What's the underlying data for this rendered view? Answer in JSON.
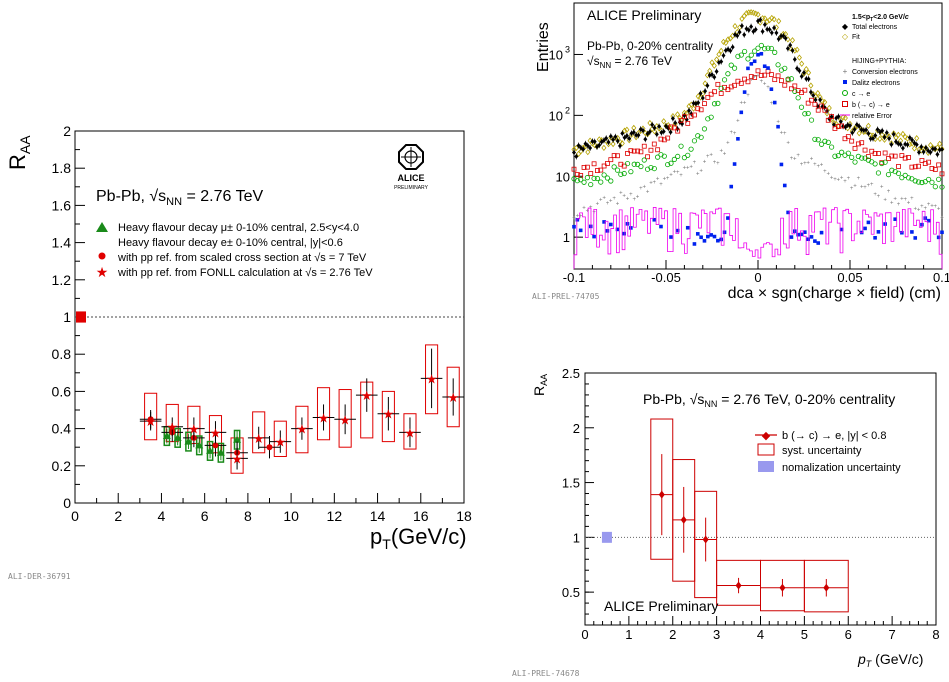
{
  "chart_data": [
    {
      "type": "scatter",
      "id": "raa-left",
      "ylabel": "R_AA",
      "ylabel_main": "R",
      "ylabel_sub": "AA",
      "xlabel_main": "p",
      "xlabel_sub": "T",
      "xlabel_unit": "(GeV/c)",
      "xlim": [
        0,
        18
      ],
      "ylim": [
        0,
        2
      ],
      "xticks": [
        "0",
        "2",
        "4",
        "6",
        "8",
        "10",
        "12",
        "14",
        "16",
        "18"
      ],
      "yticks": [
        "0",
        "0.2",
        "0.4",
        "0.6",
        "0.8",
        "1",
        "1.2",
        "1.4",
        "1.6",
        "1.8",
        "2"
      ],
      "system_label": "Pb-Pb, √s",
      "system_sub": "NN",
      "system_energy": " = 2.76 TeV",
      "logo_text": "ALICE",
      "logo_sub": "PRELIMINARY",
      "tag": "ALI-DER-36791",
      "legend": [
        "Heavy flavour decay μ± 0-10% central, 2.5<y<4.0",
        "Heavy flavour decay e± 0-10% central, |y|<0.6",
        "with pp ref. from scaled cross section at √s = 7 TeV",
        "with pp ref. from FONLL calculation at √s = 2.76 TeV"
      ],
      "norm_box": {
        "y": 1.0,
        "height": 0.06
      },
      "muon_series": {
        "name": "Heavy flavour decay μ± 0-10% central, 2.5<y<4.0",
        "x": [
          4.25,
          4.75,
          5.25,
          5.75,
          6.25,
          6.75,
          7.5
        ],
        "y": [
          0.36,
          0.35,
          0.33,
          0.31,
          0.28,
          0.27,
          0.34
        ],
        "err": [
          0.04,
          0.04,
          0.04,
          0.04,
          0.04,
          0.04,
          0.05
        ],
        "syst": [
          0.05,
          0.05,
          0.05,
          0.05,
          0.05,
          0.05,
          0.05
        ]
      },
      "electron_scaled": {
        "name": "with pp ref. from scaled cross section at √s = 7 TeV",
        "x": [
          3.5,
          4.5,
          5.5,
          6.5,
          7.5,
          9.0
        ],
        "y": [
          0.45,
          0.38,
          0.35,
          0.31,
          0.27,
          0.3
        ],
        "err": [
          0.05,
          0.05,
          0.05,
          0.06,
          0.06,
          0.06
        ]
      },
      "electron_fonll": {
        "name": "with pp ref. from FONLL calculation at √s = 2.76 TeV",
        "x": [
          3.5,
          4.5,
          5.5,
          6.5,
          7.5,
          8.5,
          9.5,
          10.5,
          11.5,
          12.5,
          13.5,
          14.5,
          15.5,
          16.5,
          17.5
        ],
        "y": [
          0.44,
          0.41,
          0.4,
          0.38,
          0.24,
          0.35,
          0.33,
          0.4,
          0.46,
          0.45,
          0.58,
          0.48,
          0.38,
          0.67,
          0.57
        ],
        "err": [
          0.05,
          0.05,
          0.06,
          0.06,
          0.06,
          0.06,
          0.06,
          0.06,
          0.07,
          0.08,
          0.09,
          0.09,
          0.08,
          0.16,
          0.1
        ],
        "syst_lo": [
          0.34,
          0.33,
          0.32,
          0.27,
          0.16,
          0.27,
          0.25,
          0.27,
          0.34,
          0.3,
          0.35,
          0.33,
          0.29,
          0.48,
          0.41
        ],
        "syst_hi": [
          0.59,
          0.53,
          0.52,
          0.47,
          0.35,
          0.49,
          0.44,
          0.52,
          0.62,
          0.61,
          0.65,
          0.6,
          0.48,
          0.85,
          0.73
        ]
      }
    },
    {
      "type": "line",
      "id": "dca-topright",
      "ylabel": "Entries",
      "xlabel": "dca × sgn(charge × field) (cm)",
      "xlim": [
        -0.1,
        0.1
      ],
      "ylim": [
        0.3,
        7000
      ],
      "yscale": "log",
      "xticks": [
        "-0.1",
        "-0.05",
        "0",
        "0.05",
        "0.1"
      ],
      "ytick_values": [
        1,
        10,
        100,
        1000
      ],
      "ytick_base": "10",
      "ytick_exp": [
        "",
        "",
        "2",
        "3"
      ],
      "ytick_plain": [
        "1",
        "10",
        "",
        ""
      ],
      "header": "ALICE Preliminary",
      "system_line1": "Pb-Pb, 0-20% centrality",
      "system_line2_a": "√s",
      "system_line2_sub": "NN",
      "system_line2_b": " = 2.76 TeV",
      "tag": "ALI-PREL-74705",
      "legend_title": "1.5<p_T<2.0 GeV/c",
      "legend_title_a": "1.5<p",
      "legend_title_sub": "T",
      "legend_title_b": "<2.0 GeV/",
      "legend_title_c": "c",
      "legend": [
        "Total electrons",
        "Fit",
        "HIJING+PYTHIA:",
        "Conversion electrons",
        "Dalitz electrons",
        "c → e",
        "b (→ c) → e",
        "relative Error"
      ],
      "series": [
        {
          "name": "Total electrons",
          "color": "#000000",
          "amp": 3000,
          "width": 0.012,
          "tail_amp": 180,
          "tail_width": 0.045,
          "floor": 6
        },
        {
          "name": "Fit",
          "color": "#b5a200",
          "amp": 4200,
          "width": 0.012,
          "tail_amp": 200,
          "tail_width": 0.045,
          "floor": 6
        },
        {
          "name": "Conversion electrons",
          "color": "#777777",
          "amp": 350,
          "width": 0.006,
          "tail_amp": 40,
          "tail_width": 0.03,
          "floor": 1.2
        },
        {
          "name": "Dalitz electrons",
          "color": "#0022ee",
          "amp": 1000,
          "width": 0.0045,
          "tail_amp": 0,
          "tail_width": 0.02,
          "floor": 0
        },
        {
          "name": "c → e",
          "color": "#00aa00",
          "amp": 1200,
          "width": 0.011,
          "tail_amp": 60,
          "tail_width": 0.04,
          "floor": 3
        },
        {
          "name": "b (→ c) → e",
          "color": "#dd0000",
          "amp": 400,
          "width": 0.02,
          "tail_amp": 60,
          "tail_width": 0.05,
          "floor": 5
        },
        {
          "name": "relative Error",
          "color": "#ee00ee"
        }
      ]
    },
    {
      "type": "scatter",
      "id": "raa-bottomright",
      "ylabel": "R_AA",
      "ylabel_main": "R",
      "ylabel_sub": "AA",
      "xlabel_main": "p",
      "xlabel_sub": "T",
      "xlabel_unit": " (GeV/c)",
      "xlim": [
        0,
        8
      ],
      "ylim": [
        0.2,
        2.5
      ],
      "xticks": [
        "0",
        "1",
        "2",
        "3",
        "4",
        "5",
        "6",
        "7",
        "8"
      ],
      "ytick_values": [
        0.5,
        1,
        1.5,
        2,
        2.5
      ],
      "yticks": [
        "0.5",
        "1",
        "1.5",
        "2",
        "2.5"
      ],
      "system_label": "Pb-Pb, √s",
      "system_sub": "NN",
      "system_energy": " = 2.76 TeV, 0-20% centrality",
      "header": "ALICE Preliminary",
      "tag": "ALI-PREL-74678",
      "legend": [
        "b (→ c) → e, |y| < 0.8",
        "syst. uncertainty",
        "nomalization uncertainty"
      ],
      "norm_box": {
        "x": 0.5,
        "y": 1.0,
        "height": 0.1
      },
      "series": [
        {
          "name": "b (→ c) → e, |y| < 0.8",
          "x": [
            1.75,
            2.25,
            2.75,
            3.5,
            4.5,
            5.5
          ],
          "y": [
            1.39,
            1.16,
            0.98,
            0.56,
            0.54,
            0.54
          ],
          "xerr": [
            0.25,
            0.25,
            0.25,
            0.5,
            0.5,
            0.5
          ],
          "err": [
            0.37,
            0.3,
            0.2,
            0.07,
            0.08,
            0.08
          ],
          "syst_lo": [
            0.8,
            0.6,
            0.45,
            0.38,
            0.33,
            0.32
          ],
          "syst_hi": [
            2.08,
            1.71,
            1.42,
            0.79,
            0.79,
            0.79
          ]
        }
      ]
    }
  ]
}
